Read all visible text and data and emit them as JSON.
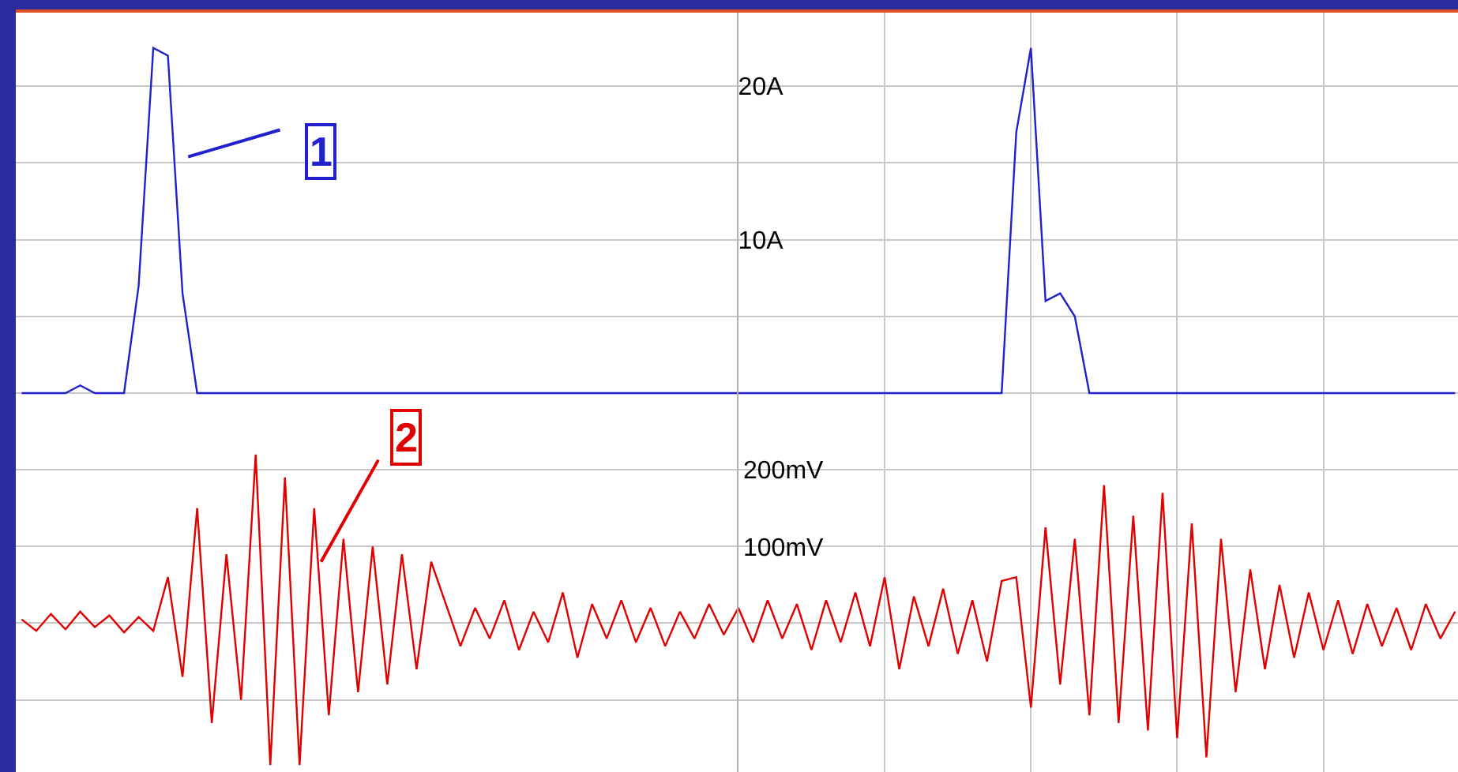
{
  "chart_data": {
    "type": "line",
    "categories": [
      null,
      null,
      null,
      null,
      null,
      null,
      null,
      null,
      null,
      null,
      null,
      null,
      null,
      null,
      null,
      null,
      null,
      null,
      null,
      null,
      null,
      null,
      null,
      null,
      null,
      null,
      null,
      null,
      null,
      null,
      null,
      null,
      null,
      null,
      null,
      null,
      null,
      null,
      null,
      null,
      null,
      null,
      null,
      null,
      null,
      null,
      null,
      null,
      null,
      null,
      null,
      null,
      null,
      null,
      null,
      null,
      null,
      null,
      null,
      null,
      null,
      null,
      null,
      null,
      null,
      null,
      null,
      null,
      null,
      null,
      null,
      null,
      null,
      null,
      null,
      null,
      null,
      null,
      null,
      null,
      null,
      null,
      null,
      null,
      null,
      null,
      null,
      null,
      null,
      null,
      null,
      null,
      null,
      null,
      null,
      null,
      null,
      null,
      null
    ],
    "ylim": [
      -24.7,
      24.8
    ],
    "yticks": [
      {
        "value": -20,
        "label": null
      },
      {
        "value": -15,
        "label": null
      },
      {
        "value": -10,
        "label": null
      },
      {
        "value": -5,
        "label": null
      },
      {
        "value": 0,
        "label": null
      },
      {
        "value": 5,
        "label": null
      },
      {
        "value": 10,
        "label": "10A"
      },
      {
        "value": 15,
        "label": null
      },
      {
        "value": 20,
        "label": "20A"
      }
    ],
    "y2lim": [
      -194,
      796
    ],
    "y2ticks": [
      {
        "value": 100,
        "label": "100mV"
      },
      {
        "value": 200,
        "label": "200mV"
      }
    ],
    "grid": true,
    "line_style": "solid",
    "annotations": [
      "1",
      "2"
    ],
    "series": [
      {
        "color": "#2020cc",
        "values": [
          0,
          0,
          0,
          0,
          0.5,
          0,
          0,
          0,
          7,
          22.5,
          22,
          6.5,
          0,
          0,
          0,
          0,
          0,
          0,
          0,
          0,
          0,
          0,
          0,
          0,
          0,
          0,
          0,
          0,
          0,
          0,
          0,
          0,
          0,
          0,
          0,
          0,
          0,
          0,
          0,
          0,
          0,
          0,
          0,
          0,
          0,
          0,
          0,
          0,
          0,
          0,
          0,
          0,
          0,
          0,
          0,
          0,
          0,
          0,
          0,
          0,
          0,
          0,
          0,
          0,
          0,
          0,
          0,
          0,
          17,
          22.5,
          6,
          6.5,
          5,
          0,
          0,
          0,
          0,
          0,
          0,
          0,
          0,
          0,
          0,
          0,
          0,
          0,
          0,
          0,
          0,
          0,
          0,
          0,
          0,
          0,
          0,
          0,
          0,
          0,
          0
        ]
      },
      {
        "color": "#e00000",
        "axis": "y2",
        "values": [
          5,
          -10,
          12,
          -8,
          15,
          -5,
          10,
          -12,
          8,
          -10,
          60,
          -70,
          150,
          -130,
          90,
          -100,
          220,
          -185,
          190,
          -185,
          150,
          -120,
          110,
          -90,
          100,
          -80,
          90,
          -60,
          80,
          25,
          -30,
          20,
          -20,
          30,
          -35,
          15,
          -25,
          40,
          -45,
          25,
          -20,
          30,
          -25,
          20,
          -30,
          15,
          -20,
          25,
          -15,
          20,
          -25,
          30,
          -20,
          25,
          -35,
          30,
          -25,
          40,
          -30,
          60,
          -60,
          35,
          -30,
          45,
          -40,
          30,
          -50,
          55,
          60,
          -110,
          125,
          -80,
          110,
          -120,
          180,
          -130,
          140,
          -140,
          170,
          -150,
          130,
          -175,
          110,
          -90,
          70,
          -60,
          50,
          -45,
          40,
          -35,
          30,
          -40,
          25,
          -30,
          20,
          -35,
          25,
          -20,
          15
        ]
      }
    ]
  }
}
